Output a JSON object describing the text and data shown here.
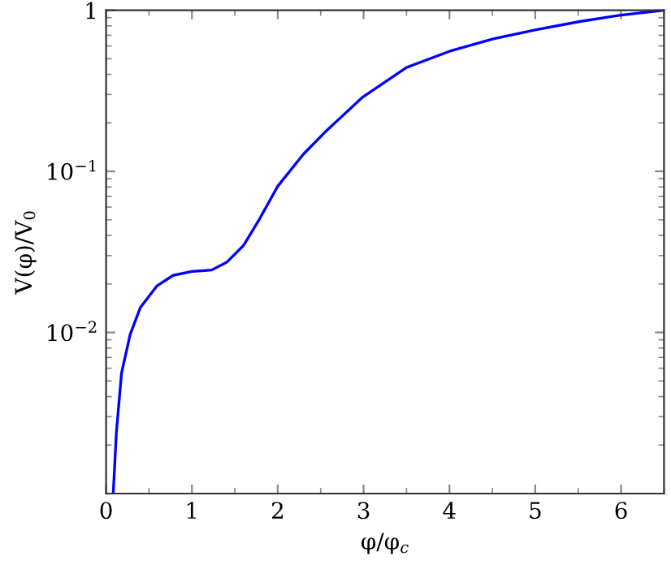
{
  "chart_data": {
    "type": "line",
    "xlabel": "φ/φ$_{c}$",
    "ylabel": "V(φ)/V$_{0}$",
    "x": [
      0.083,
      0.12,
      0.18,
      0.28,
      0.4,
      0.59,
      0.78,
      1.0,
      1.23,
      1.41,
      1.6,
      1.79,
      2.0,
      2.3,
      2.55,
      2.75,
      2.99,
      3.5,
      4.0,
      4.51,
      5.01,
      5.52,
      6.0,
      6.5
    ],
    "series": [
      {
        "color": "#0000ff",
        "values": [
          0.001,
          0.0024,
          0.0056,
          0.0097,
          0.0143,
          0.0194,
          0.0226,
          0.0239,
          0.0244,
          0.0274,
          0.0346,
          0.0509,
          0.0809,
          0.128,
          0.175,
          0.22,
          0.289,
          0.441,
          0.556,
          0.664,
          0.757,
          0.851,
          0.933,
          1.0
        ]
      }
    ],
    "log": "y",
    "xlim": [
      0,
      6.5
    ],
    "ylim": [
      0.001,
      1
    ],
    "xticks": [
      0,
      1,
      2,
      3,
      4,
      5,
      6
    ],
    "yticks": [
      {
        "value": 0.01,
        "label": "10$^{−2}$"
      },
      {
        "value": 0.1,
        "label": "10$^{−1}$"
      },
      1
    ],
    "grid": false,
    "marker": "none",
    "line_style": "solid"
  }
}
